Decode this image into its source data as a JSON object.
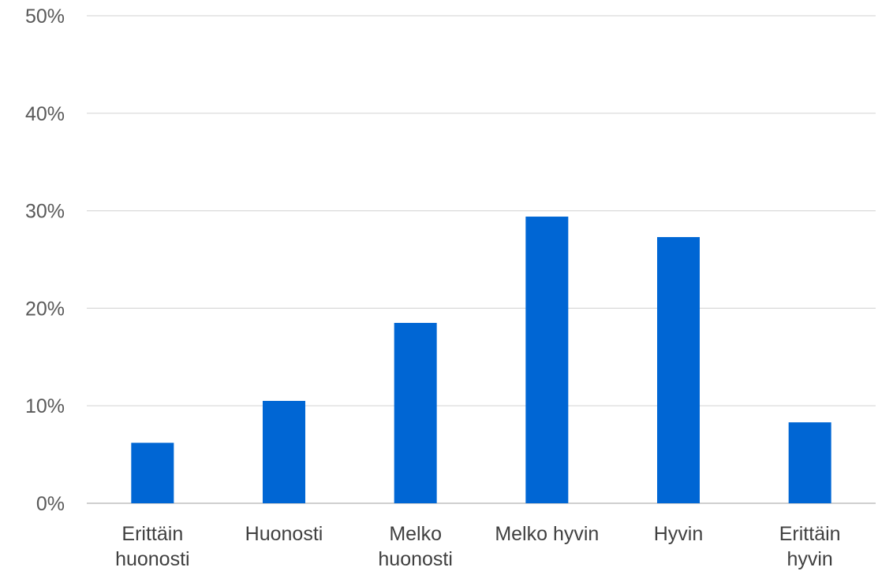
{
  "chart_data": {
    "type": "bar",
    "categories": [
      [
        "Erittäin",
        "huonosti"
      ],
      [
        "Huonosti"
      ],
      [
        "Melko",
        "huonosti"
      ],
      [
        "Melko hyvin"
      ],
      [
        "Hyvin"
      ],
      [
        "Erittäin",
        "hyvin"
      ]
    ],
    "values": [
      6.2,
      10.5,
      18.5,
      29.4,
      27.3,
      8.3
    ],
    "y_ticks": [
      "0%",
      "10%",
      "20%",
      "30%",
      "40%",
      "50%"
    ],
    "ylim": [
      0,
      50
    ],
    "grid": true,
    "legend": "none",
    "bar_color": "#0066D4",
    "grid_color": "#D9D9D9",
    "axis_color": "#BFBFBF"
  }
}
